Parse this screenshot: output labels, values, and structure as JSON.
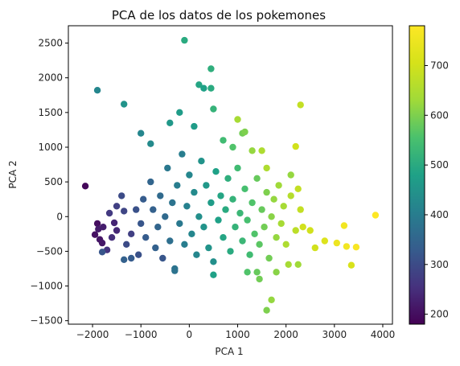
{
  "chart_data": {
    "type": "scatter",
    "title": "PCA de los datos de los pokemones",
    "xlabel": "PCA 1",
    "ylabel": "PCA 2",
    "xlim": [
      -2500,
      4200
    ],
    "ylim": [
      -1550,
      2750
    ],
    "xticks": [
      -2000,
      -1000,
      0,
      1000,
      2000,
      3000,
      4000
    ],
    "xtick_labels": [
      "−2000",
      "−1000",
      "0",
      "1000",
      "2000",
      "3000",
      "4000"
    ],
    "yticks": [
      -1500,
      -1000,
      -500,
      0,
      500,
      1000,
      1500,
      2000,
      2500
    ],
    "ytick_labels": [
      "−1500",
      "−1000",
      "−500",
      "0",
      "500",
      "1000",
      "1500",
      "2000",
      "2500"
    ],
    "colormap": "viridis",
    "colorbar": {
      "min": 180,
      "max": 780,
      "ticks": [
        200,
        300,
        400,
        500,
        600,
        700
      ],
      "tick_labels": [
        "200",
        "300",
        "400",
        "500",
        "600",
        "700"
      ]
    },
    "grid": false,
    "points": [
      {
        "x": -2150,
        "y": 440,
        "c": 190
      },
      {
        "x": -1900,
        "y": -100,
        "c": 200
      },
      {
        "x": -1950,
        "y": -260,
        "c": 205
      },
      {
        "x": -1850,
        "y": -330,
        "c": 210
      },
      {
        "x": -1800,
        "y": -380,
        "c": 215
      },
      {
        "x": -1880,
        "y": -180,
        "c": 220
      },
      {
        "x": -1780,
        "y": -150,
        "c": 225
      },
      {
        "x": -1700,
        "y": -480,
        "c": 260
      },
      {
        "x": -1600,
        "y": -300,
        "c": 250
      },
      {
        "x": -1500,
        "y": -200,
        "c": 240
      },
      {
        "x": -1550,
        "y": -90,
        "c": 235
      },
      {
        "x": -1650,
        "y": 50,
        "c": 270
      },
      {
        "x": -1500,
        "y": 150,
        "c": 280
      },
      {
        "x": -1400,
        "y": 300,
        "c": 300
      },
      {
        "x": -1350,
        "y": 80,
        "c": 290
      },
      {
        "x": -1300,
        "y": -400,
        "c": 300
      },
      {
        "x": -1200,
        "y": -250,
        "c": 280
      },
      {
        "x": -1100,
        "y": 100,
        "c": 310
      },
      {
        "x": -1000,
        "y": -100,
        "c": 320
      },
      {
        "x": -1050,
        "y": -550,
        "c": 310
      },
      {
        "x": -950,
        "y": 250,
        "c": 330
      },
      {
        "x": -900,
        "y": -300,
        "c": 330
      },
      {
        "x": -800,
        "y": 500,
        "c": 350
      },
      {
        "x": -750,
        "y": 100,
        "c": 340
      },
      {
        "x": -700,
        "y": -450,
        "c": 340
      },
      {
        "x": -650,
        "y": -150,
        "c": 350
      },
      {
        "x": -600,
        "y": 300,
        "c": 360
      },
      {
        "x": -550,
        "y": -600,
        "c": 320
      },
      {
        "x": -500,
        "y": 0,
        "c": 360
      },
      {
        "x": -450,
        "y": 700,
        "c": 390
      },
      {
        "x": -400,
        "y": -350,
        "c": 370
      },
      {
        "x": -350,
        "y": 200,
        "c": 380
      },
      {
        "x": -300,
        "y": -750,
        "c": 380
      },
      {
        "x": -250,
        "y": 450,
        "c": 400
      },
      {
        "x": -200,
        "y": -100,
        "c": 390
      },
      {
        "x": -150,
        "y": 900,
        "c": 400
      },
      {
        "x": -100,
        "y": -400,
        "c": 400
      },
      {
        "x": -50,
        "y": 150,
        "c": 410
      },
      {
        "x": 0,
        "y": 600,
        "c": 420
      },
      {
        "x": 50,
        "y": -250,
        "c": 420
      },
      {
        "x": 100,
        "y": 350,
        "c": 430
      },
      {
        "x": 150,
        "y": -550,
        "c": 420
      },
      {
        "x": 200,
        "y": 0,
        "c": 440
      },
      {
        "x": 250,
        "y": 800,
        "c": 450
      },
      {
        "x": 300,
        "y": -150,
        "c": 450
      },
      {
        "x": 350,
        "y": 450,
        "c": 460
      },
      {
        "x": 400,
        "y": -450,
        "c": 450
      },
      {
        "x": 450,
        "y": 200,
        "c": 470
      },
      {
        "x": 500,
        "y": -650,
        "c": 440
      },
      {
        "x": 550,
        "y": 650,
        "c": 480
      },
      {
        "x": 600,
        "y": -50,
        "c": 480
      },
      {
        "x": 650,
        "y": 300,
        "c": 490
      },
      {
        "x": 700,
        "y": -300,
        "c": 490
      },
      {
        "x": 750,
        "y": 100,
        "c": 500
      },
      {
        "x": 800,
        "y": 550,
        "c": 510
      },
      {
        "x": 850,
        "y": -500,
        "c": 500
      },
      {
        "x": 900,
        "y": 250,
        "c": 520
      },
      {
        "x": 950,
        "y": -150,
        "c": 520
      },
      {
        "x": 1000,
        "y": 700,
        "c": 540
      },
      {
        "x": 1050,
        "y": 50,
        "c": 530
      },
      {
        "x": 1100,
        "y": -350,
        "c": 530
      },
      {
        "x": 1150,
        "y": 400,
        "c": 550
      },
      {
        "x": 1200,
        "y": -50,
        "c": 550
      },
      {
        "x": 1250,
        "y": -550,
        "c": 540
      },
      {
        "x": 1300,
        "y": 200,
        "c": 560
      },
      {
        "x": 1350,
        "y": -250,
        "c": 560
      },
      {
        "x": 1400,
        "y": 550,
        "c": 580
      },
      {
        "x": 1450,
        "y": -400,
        "c": 570
      },
      {
        "x": 1500,
        "y": 100,
        "c": 580
      },
      {
        "x": 1550,
        "y": -150,
        "c": 590
      },
      {
        "x": 1600,
        "y": 350,
        "c": 600
      },
      {
        "x": 1650,
        "y": -600,
        "c": 590
      },
      {
        "x": 1700,
        "y": 0,
        "c": 610
      },
      {
        "x": 1750,
        "y": 250,
        "c": 620
      },
      {
        "x": 1800,
        "y": -300,
        "c": 620
      },
      {
        "x": 1850,
        "y": 450,
        "c": 630
      },
      {
        "x": 1900,
        "y": -100,
        "c": 640
      },
      {
        "x": 1950,
        "y": 150,
        "c": 640
      },
      {
        "x": 2000,
        "y": -400,
        "c": 650
      },
      {
        "x": 2100,
        "y": 300,
        "c": 660
      },
      {
        "x": 2200,
        "y": -200,
        "c": 670
      },
      {
        "x": 2300,
        "y": 100,
        "c": 680
      },
      {
        "x": -1900,
        "y": 1820,
        "c": 420
      },
      {
        "x": -1350,
        "y": 1620,
        "c": 450
      },
      {
        "x": -1000,
        "y": 1200,
        "c": 420
      },
      {
        "x": -800,
        "y": 1050,
        "c": 430
      },
      {
        "x": -400,
        "y": 1350,
        "c": 460
      },
      {
        "x": -200,
        "y": 1500,
        "c": 470
      },
      {
        "x": -100,
        "y": 2540,
        "c": 500
      },
      {
        "x": 200,
        "y": 1900,
        "c": 490
      },
      {
        "x": 300,
        "y": 1850,
        "c": 480
      },
      {
        "x": 450,
        "y": 2130,
        "c": 510
      },
      {
        "x": 450,
        "y": 1850,
        "c": 500
      },
      {
        "x": 100,
        "y": 1300,
        "c": 470
      },
      {
        "x": 500,
        "y": 1550,
        "c": 520
      },
      {
        "x": 700,
        "y": 1100,
        "c": 540
      },
      {
        "x": 900,
        "y": 1000,
        "c": 560
      },
      {
        "x": 1000,
        "y": 1400,
        "c": 640
      },
      {
        "x": 1100,
        "y": 1200,
        "c": 590
      },
      {
        "x": 1150,
        "y": 1220,
        "c": 600
      },
      {
        "x": 1300,
        "y": 950,
        "c": 620
      },
      {
        "x": 1500,
        "y": 950,
        "c": 650
      },
      {
        "x": 1600,
        "y": 700,
        "c": 650
      },
      {
        "x": 2200,
        "y": 1010,
        "c": 700
      },
      {
        "x": 2300,
        "y": 1610,
        "c": 680
      },
      {
        "x": 2100,
        "y": 600,
        "c": 620
      },
      {
        "x": 2250,
        "y": 400,
        "c": 680
      },
      {
        "x": 2350,
        "y": -150,
        "c": 700
      },
      {
        "x": 2500,
        "y": -200,
        "c": 700
      },
      {
        "x": 2600,
        "y": -450,
        "c": 700
      },
      {
        "x": 2800,
        "y": -350,
        "c": 720
      },
      {
        "x": 3050,
        "y": -380,
        "c": 750
      },
      {
        "x": 3200,
        "y": -130,
        "c": 760
      },
      {
        "x": 3250,
        "y": -430,
        "c": 760
      },
      {
        "x": 3450,
        "y": -440,
        "c": 770
      },
      {
        "x": 3350,
        "y": -700,
        "c": 710
      },
      {
        "x": 3850,
        "y": 20,
        "c": 780
      },
      {
        "x": 2050,
        "y": -690,
        "c": 640
      },
      {
        "x": 2250,
        "y": -690,
        "c": 630
      },
      {
        "x": 1700,
        "y": -1200,
        "c": 620
      },
      {
        "x": 1600,
        "y": -1350,
        "c": 600
      },
      {
        "x": 1800,
        "y": -800,
        "c": 610
      },
      {
        "x": 1400,
        "y": -800,
        "c": 580
      },
      {
        "x": 1200,
        "y": -800,
        "c": 560
      },
      {
        "x": 1450,
        "y": -900,
        "c": 590
      },
      {
        "x": 500,
        "y": -840,
        "c": 480
      },
      {
        "x": -300,
        "y": -780,
        "c": 380
      },
      {
        "x": -1200,
        "y": -600,
        "c": 330
      },
      {
        "x": -1350,
        "y": -620,
        "c": 340
      },
      {
        "x": -1800,
        "y": -510,
        "c": 320
      }
    ]
  }
}
